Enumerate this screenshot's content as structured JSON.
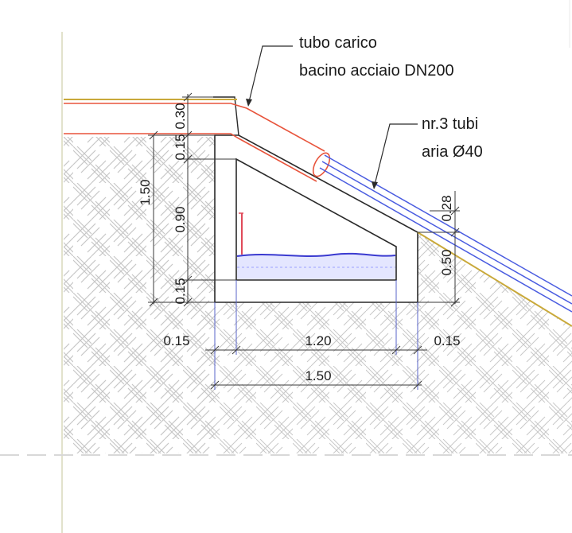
{
  "labels": {
    "steel_pipe_line1": "tubo carico",
    "steel_pipe_line2": "bacino acciaio DN200",
    "air_pipes_line1": "nr.3 tubi",
    "air_pipes_line2": "aria Ø40"
  },
  "dimensions": {
    "vertical_left": [
      "0.30",
      "0.15",
      "0.90",
      "0.15"
    ],
    "vertical_total": "1.50",
    "vertical_right": [
      "0.28",
      "0.50"
    ],
    "horizontal": [
      "0.15",
      "1.20",
      "0.15"
    ],
    "horizontal_total": "1.50"
  },
  "colors": {
    "steel_pipe": "#e8543c",
    "air_pipes": "#4a5ce0",
    "ground_line": "#c9a93a",
    "water": "#3a3ad0",
    "level_gauge": "#e04a5a"
  }
}
